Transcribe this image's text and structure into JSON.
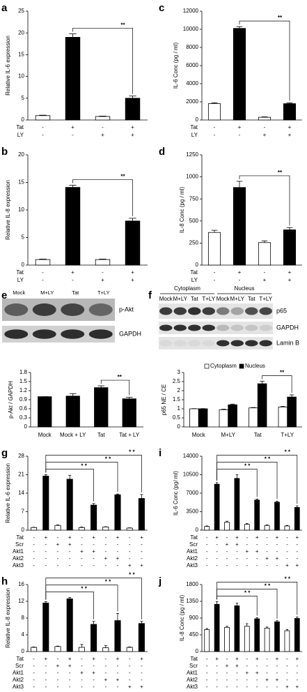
{
  "chart_data": [
    {
      "type": "bar",
      "panel": "a",
      "ylabel": "Relative IL-6 expression",
      "ylim": [
        0,
        25
      ],
      "yticks": [
        0,
        5,
        10,
        15,
        20,
        25
      ],
      "values": [
        1,
        19,
        0.8,
        5
      ],
      "errors": [
        0.1,
        0.8,
        0.1,
        0.5
      ],
      "colors": [
        "#ffffff",
        "#000000",
        "#ffffff",
        "#000000"
      ],
      "conditions": [
        {
          "name": "Tat",
          "marks": [
            "-",
            "+",
            "-",
            "+"
          ]
        },
        {
          "name": "LY",
          "marks": [
            "-",
            "-",
            "+",
            "+"
          ]
        }
      ],
      "brackets": [
        {
          "from": 1,
          "to": 3,
          "label": "**"
        }
      ]
    },
    {
      "type": "bar",
      "panel": "c",
      "ylabel": "IL-6 Conc (pg / ml)",
      "ylim": [
        0,
        12000
      ],
      "yticks": [
        0,
        2000,
        4000,
        6000,
        8000,
        10000,
        12000
      ],
      "values": [
        1800,
        10100,
        300,
        1800
      ],
      "errors": [
        100,
        200,
        50,
        100
      ],
      "colors": [
        "#ffffff",
        "#000000",
        "#ffffff",
        "#000000"
      ],
      "conditions": [
        {
          "name": "Tat",
          "marks": [
            "-",
            "+",
            "-",
            "+"
          ]
        },
        {
          "name": "LY",
          "marks": [
            "-",
            "-",
            "+",
            "+"
          ]
        }
      ],
      "brackets": [
        {
          "from": 1,
          "to": 3,
          "label": "**"
        }
      ]
    },
    {
      "type": "bar",
      "panel": "b",
      "ylabel": "Relative IL-8 expression",
      "ylim": [
        0,
        20
      ],
      "yticks": [
        0,
        5,
        10,
        15,
        20
      ],
      "values": [
        1,
        14.1,
        1,
        8
      ],
      "errors": [
        0.1,
        0.4,
        0.1,
        0.5
      ],
      "colors": [
        "#ffffff",
        "#000000",
        "#ffffff",
        "#000000"
      ],
      "conditions": [
        {
          "name": "Tat",
          "marks": [
            "-",
            "+",
            "-",
            "+"
          ]
        },
        {
          "name": "LY",
          "marks": [
            "-",
            "-",
            "+",
            "+"
          ]
        }
      ],
      "brackets": [
        {
          "from": 1,
          "to": 3,
          "label": "**"
        }
      ]
    },
    {
      "type": "bar",
      "panel": "d",
      "ylabel": "IL-8 Conc (pg / ml)",
      "ylim": [
        0,
        1250
      ],
      "yticks": [
        0,
        250,
        500,
        750,
        1000,
        1250
      ],
      "values": [
        370,
        880,
        255,
        400
      ],
      "errors": [
        25,
        70,
        20,
        25
      ],
      "colors": [
        "#ffffff",
        "#000000",
        "#ffffff",
        "#000000"
      ],
      "conditions": [
        {
          "name": "Tat",
          "marks": [
            "-",
            "+",
            "-",
            "+"
          ]
        },
        {
          "name": "LY",
          "marks": [
            "-",
            "-",
            "+",
            "+"
          ]
        }
      ],
      "brackets": [
        {
          "from": 1,
          "to": 3,
          "label": "**"
        }
      ]
    },
    {
      "type": "bar",
      "ylabel": "p-Akt / GAPDH",
      "ylim": [
        0,
        1.8
      ],
      "yticks": [
        0,
        0.3,
        0.6,
        0.9,
        1.2,
        1.5,
        1.8
      ],
      "categories": [
        "Mock",
        "Mock + LY",
        "Tat",
        "Tat + LY"
      ],
      "values": [
        1,
        1.02,
        1.3,
        0.93
      ],
      "errors": [
        0,
        0.08,
        0.06,
        0.05
      ],
      "color": "#000000",
      "brackets": [
        {
          "from": 2,
          "to": 3,
          "label": "**"
        }
      ]
    },
    {
      "type": "bar",
      "ylabel": "p65 NE / CE",
      "ylim": [
        0,
        3
      ],
      "yticks": [
        0,
        0.5,
        1,
        1.5,
        2,
        2.5,
        3
      ],
      "categories": [
        "Mock",
        "M+LY",
        "Tat",
        "T+LY"
      ],
      "legend": "top",
      "series": [
        {
          "name": "Cytoplasm",
          "color": "#ffffff",
          "values": [
            1,
            0.95,
            1.05,
            1.1
          ],
          "errors": [
            0.01,
            0.03,
            0.02,
            0.03
          ]
        },
        {
          "name": "Nucleus",
          "color": "#000000",
          "values": [
            1,
            1.22,
            2.38,
            1.65
          ],
          "errors": [
            0.01,
            0.04,
            0.14,
            0.12
          ]
        }
      ],
      "brackets": [
        {
          "from": 2,
          "to": 3,
          "label": "**"
        }
      ]
    },
    {
      "type": "bar",
      "panel": "g",
      "ylabel": "Relative IL-6 expression",
      "ylim": [
        0,
        28
      ],
      "yticks": [
        0,
        7,
        14,
        21,
        28
      ],
      "values": [
        1,
        20.5,
        1.8,
        19.3,
        1,
        9.5,
        1.2,
        13.4,
        0.8,
        12
      ],
      "errors": [
        0.1,
        0.5,
        0.2,
        1.5,
        0.2,
        0.6,
        0.1,
        0.3,
        0.1,
        1.5
      ],
      "colors": [
        "#ffffff",
        "#000000",
        "#ffffff",
        "#000000",
        "#ffffff",
        "#000000",
        "#ffffff",
        "#000000",
        "#ffffff",
        "#000000"
      ],
      "conditions": [
        {
          "name": "Tat",
          "marks": [
            "-",
            "+",
            "-",
            "+",
            "-",
            "+",
            "-",
            "+",
            "-",
            "+"
          ]
        },
        {
          "name": "Scr",
          "marks": [
            "-",
            "-",
            "+",
            "+",
            "-",
            "-",
            "-",
            "-",
            "-",
            "-"
          ]
        },
        {
          "name": "Akt1",
          "marks": [
            "-",
            "-",
            "-",
            "-",
            "+",
            "+",
            "-",
            "-",
            "-",
            "-"
          ]
        },
        {
          "name": "Akt2",
          "marks": [
            "-",
            "-",
            "-",
            "-",
            "-",
            "-",
            "+",
            "+",
            "-",
            "-"
          ]
        },
        {
          "name": "Akt3",
          "marks": [
            "-",
            "-",
            "-",
            "-",
            "-",
            "-",
            "-",
            "-",
            "+",
            "+"
          ]
        }
      ],
      "brackets": [
        {
          "from": 1,
          "to": 5,
          "label": "* *"
        },
        {
          "from": 1,
          "to": 7,
          "label": "* *"
        },
        {
          "from": 1,
          "to": 9,
          "label": "* *"
        }
      ]
    },
    {
      "type": "bar",
      "panel": "i",
      "ylabel": "IL-6 Conc (pg/ ml)",
      "ylim": [
        0,
        14000
      ],
      "yticks": [
        0,
        3500,
        7000,
        10500,
        14000
      ],
      "values": [
        700,
        8700,
        1500,
        9800,
        1100,
        5700,
        900,
        5300,
        800,
        4300
      ],
      "errors": [
        100,
        300,
        200,
        700,
        150,
        200,
        100,
        200,
        100,
        300
      ],
      "colors": [
        "#ffffff",
        "#000000",
        "#ffffff",
        "#000000",
        "#ffffff",
        "#000000",
        "#ffffff",
        "#000000",
        "#ffffff",
        "#000000"
      ],
      "conditions": [
        {
          "name": "Tat",
          "marks": [
            "-",
            "+",
            "-",
            "+",
            "-",
            "+",
            "-",
            "+",
            "-",
            "+"
          ]
        },
        {
          "name": "Scr",
          "marks": [
            "-",
            "-",
            "+",
            "+",
            "-",
            "-",
            "-",
            "-",
            "-",
            "-"
          ]
        },
        {
          "name": "Akt1",
          "marks": [
            "-",
            "-",
            "-",
            "-",
            "+",
            "+",
            "-",
            "-",
            "-",
            "-"
          ]
        },
        {
          "name": "Akt2",
          "marks": [
            "-",
            "-",
            "-",
            "-",
            "-",
            "-",
            "+",
            "+",
            "-",
            "-"
          ]
        },
        {
          "name": "Akt3",
          "marks": [
            "-",
            "-",
            "-",
            "-",
            "-",
            "-",
            "-",
            "-",
            "+",
            "+"
          ]
        }
      ],
      "brackets": [
        {
          "from": 1,
          "to": 5,
          "label": "* *"
        },
        {
          "from": 1,
          "to": 7,
          "label": "* *"
        },
        {
          "from": 1,
          "to": 9,
          "label": "* *"
        }
      ]
    },
    {
      "type": "bar",
      "panel": "h",
      "ylabel": "Relative IL-8 expression",
      "ylim": [
        0,
        16
      ],
      "yticks": [
        0,
        4,
        8,
        12,
        16
      ],
      "values": [
        1,
        11.6,
        1.2,
        12.6,
        1,
        6.5,
        0.9,
        7.4,
        1,
        6.7
      ],
      "errors": [
        0.1,
        0.3,
        0.1,
        0.3,
        0.7,
        0.7,
        0.5,
        1.7,
        0.1,
        0.5
      ],
      "colors": [
        "#ffffff",
        "#000000",
        "#ffffff",
        "#000000",
        "#ffffff",
        "#000000",
        "#ffffff",
        "#000000",
        "#ffffff",
        "#000000"
      ],
      "conditions": [
        {
          "name": "Tat",
          "marks": [
            "-",
            "+",
            "-",
            "+",
            "-",
            "+",
            "-",
            "+",
            "-",
            "+"
          ]
        },
        {
          "name": "Scr",
          "marks": [
            "-",
            "-",
            "+",
            "+",
            "-",
            "-",
            "-",
            "-",
            "-",
            "-"
          ]
        },
        {
          "name": "Akt1",
          "marks": [
            "-",
            "-",
            "-",
            "-",
            "+",
            "+",
            "-",
            "-",
            "-",
            "-"
          ]
        },
        {
          "name": "Akt2",
          "marks": [
            "-",
            "-",
            "-",
            "-",
            "-",
            "-",
            "+",
            "+",
            "-",
            "-"
          ]
        },
        {
          "name": "Akt3",
          "marks": [
            "-",
            "-",
            "-",
            "-",
            "-",
            "-",
            "-",
            "-",
            "+",
            "+"
          ]
        }
      ],
      "brackets": [
        {
          "from": 1,
          "to": 5,
          "label": "* *"
        },
        {
          "from": 1,
          "to": 7,
          "label": "* *"
        },
        {
          "from": 1,
          "to": 9,
          "label": "* *"
        }
      ]
    },
    {
      "type": "bar",
      "panel": "j",
      "ylabel": "IL-8 Conc (pg / ml)",
      "ylim": [
        0,
        1800
      ],
      "yticks": [
        0,
        450,
        900,
        1350,
        1800
      ],
      "values": [
        590,
        1270,
        650,
        1230,
        680,
        880,
        630,
        800,
        560,
        890
      ],
      "errors": [
        30,
        70,
        30,
        70,
        70,
        30,
        30,
        30,
        30,
        40
      ],
      "colors": [
        "#ffffff",
        "#000000",
        "#ffffff",
        "#000000",
        "#ffffff",
        "#000000",
        "#ffffff",
        "#000000",
        "#ffffff",
        "#000000"
      ],
      "conditions": [
        {
          "name": "Tat",
          "marks": [
            "-",
            "+",
            "-",
            "+",
            "-",
            "+",
            "-",
            "+",
            "-",
            "+"
          ]
        },
        {
          "name": "Scr",
          "marks": [
            "-",
            "-",
            "+",
            "+",
            "-",
            "-",
            "-",
            "-",
            "-",
            "-"
          ]
        },
        {
          "name": "Akt1",
          "marks": [
            "-",
            "-",
            "-",
            "-",
            "+",
            "+",
            "-",
            "-",
            "-",
            "-"
          ]
        },
        {
          "name": "Akt2",
          "marks": [
            "-",
            "-",
            "-",
            "-",
            "-",
            "-",
            "+",
            "+",
            "-",
            "-"
          ]
        },
        {
          "name": "Akt3",
          "marks": [
            "-",
            "-",
            "-",
            "-",
            "-",
            "-",
            "-",
            "-",
            "+",
            "+"
          ]
        }
      ],
      "brackets": [
        {
          "from": 1,
          "to": 5,
          "label": "* *"
        },
        {
          "from": 1,
          "to": 7,
          "label": "* *"
        },
        {
          "from": 1,
          "to": 9,
          "label": "* *"
        }
      ]
    }
  ],
  "blots": [
    {
      "panel": "e",
      "lanes": [
        "Mock",
        "M+LY",
        "Tat",
        "T+LY"
      ],
      "bands": [
        "p-Akt",
        "GAPDH"
      ]
    },
    {
      "panel": "f",
      "groups": [
        "Cytoplasm",
        "Nucleus"
      ],
      "lanes": [
        "Mock",
        "M+LY",
        "Tat",
        "T+LY",
        "Mock",
        "M+LY",
        "Tat",
        "T+LY"
      ],
      "bands": [
        "p65",
        "GAPDH",
        "Lamin B"
      ]
    }
  ]
}
